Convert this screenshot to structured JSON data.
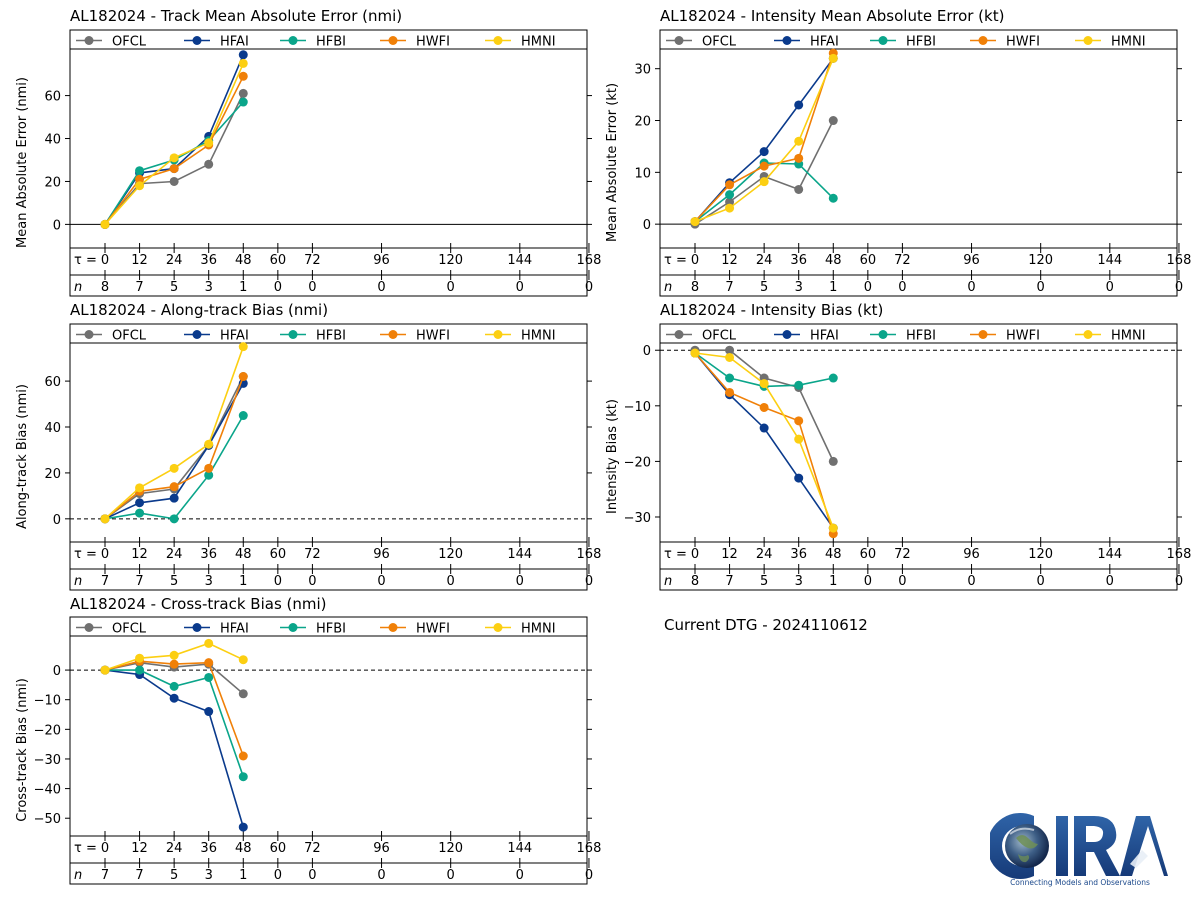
{
  "dtg_text": "Current DTG - 2024110612",
  "logo": {
    "text": "CIRA",
    "tagline": "Connecting Models and Observations"
  },
  "colors": {
    "OFCL": "#707070",
    "HFAI": "#0a3a8c",
    "HFBI": "#0aa58a",
    "HWFI": "#f08008",
    "HMNI": "#fccf12"
  },
  "chart_data": [
    {
      "id": "track_mae",
      "type": "line",
      "title": "AL182024 - Track Mean Absolute Error (nmi)",
      "ylabel": "Mean Absolute Error (nmi)",
      "ylim": [
        -11,
        81.7
      ],
      "yticks": [
        0,
        20,
        40,
        60
      ],
      "dashed_zero": false,
      "tau_label": "τ =",
      "n_label": "n",
      "taus": [
        0,
        12,
        24,
        36,
        48,
        60,
        72,
        96,
        120,
        144,
        168
      ],
      "n": [
        8,
        7,
        5,
        3,
        1,
        0,
        0,
        0,
        0,
        0,
        0
      ],
      "series": [
        {
          "name": "OFCL",
          "x": [
            0,
            12,
            24,
            36,
            48
          ],
          "values": [
            0,
            19,
            20,
            28,
            61
          ]
        },
        {
          "name": "HFAI",
          "x": [
            0,
            12,
            24,
            36,
            48
          ],
          "values": [
            0,
            24,
            26,
            41,
            79
          ]
        },
        {
          "name": "HFBI",
          "x": [
            0,
            12,
            24,
            36,
            48
          ],
          "values": [
            0,
            25,
            30,
            39,
            57
          ]
        },
        {
          "name": "HWFI",
          "x": [
            0,
            12,
            24,
            36,
            48
          ],
          "values": [
            0,
            21,
            26,
            37,
            69
          ]
        },
        {
          "name": "HMNI",
          "x": [
            0,
            12,
            24,
            36,
            48
          ],
          "values": [
            0,
            18,
            31,
            38,
            75
          ]
        }
      ]
    },
    {
      "id": "intensity_mae",
      "type": "line",
      "title": "AL182024 - Intensity Mean Absolute Error (kt)",
      "ylabel": "Mean Absolute Error (kt)",
      "ylim": [
        -4.6,
        33.8
      ],
      "yticks": [
        0,
        10,
        20,
        30
      ],
      "dashed_zero": false,
      "tau_label": "τ =",
      "n_label": "n",
      "taus": [
        0,
        12,
        24,
        36,
        48,
        60,
        72,
        96,
        120,
        144,
        168
      ],
      "n": [
        8,
        7,
        5,
        3,
        1,
        0,
        0,
        0,
        0,
        0,
        0
      ],
      "series": [
        {
          "name": "OFCL",
          "x": [
            0,
            12,
            24,
            36,
            48
          ],
          "values": [
            0,
            4.3,
            9.2,
            6.7,
            20
          ]
        },
        {
          "name": "HFAI",
          "x": [
            0,
            12,
            24,
            36,
            48
          ],
          "values": [
            0.5,
            8,
            14,
            23,
            32
          ]
        },
        {
          "name": "HFBI",
          "x": [
            0,
            12,
            24,
            36,
            48
          ],
          "values": [
            0.5,
            5.7,
            11.8,
            11.6,
            5
          ]
        },
        {
          "name": "HWFI",
          "x": [
            0,
            12,
            24,
            36,
            48
          ],
          "values": [
            0.5,
            7.6,
            11.2,
            12.7,
            33
          ]
        },
        {
          "name": "HMNI",
          "x": [
            0,
            12,
            24,
            36,
            48
          ],
          "values": [
            0.5,
            3.1,
            8.2,
            16,
            32
          ]
        }
      ]
    },
    {
      "id": "along_track_bias",
      "type": "line",
      "title": "AL182024 - Along-track Bias (nmi)",
      "ylabel": "Along-track Bias (nmi)",
      "ylim": [
        -10.1,
        76.6
      ],
      "yticks": [
        0,
        20,
        40,
        60
      ],
      "dashed_zero": true,
      "tau_label": "τ =",
      "n_label": "n",
      "taus": [
        0,
        12,
        24,
        36,
        48,
        60,
        72,
        96,
        120,
        144,
        168
      ],
      "n": [
        7,
        7,
        5,
        3,
        1,
        0,
        0,
        0,
        0,
        0,
        0
      ],
      "series": [
        {
          "name": "OFCL",
          "x": [
            0,
            12,
            24,
            36,
            48
          ],
          "values": [
            0,
            11,
            13,
            32,
            62
          ]
        },
        {
          "name": "HFAI",
          "x": [
            0,
            12,
            24,
            36,
            48
          ],
          "values": [
            0,
            7,
            9,
            32,
            59
          ]
        },
        {
          "name": "HFBI",
          "x": [
            0,
            12,
            24,
            36,
            48
          ],
          "values": [
            0,
            2.5,
            0,
            19,
            45
          ]
        },
        {
          "name": "HWFI",
          "x": [
            0,
            12,
            24,
            36,
            48
          ],
          "values": [
            0,
            12,
            14,
            22,
            62
          ]
        },
        {
          "name": "HMNI",
          "x": [
            0,
            12,
            24,
            36,
            48
          ],
          "values": [
            0,
            13.5,
            22,
            32.5,
            75
          ]
        }
      ]
    },
    {
      "id": "intensity_bias",
      "type": "line",
      "title": "AL182024 - Intensity Bias (kt)",
      "ylabel": "Intensity Bias (kt)",
      "ylim": [
        -34.5,
        1.3
      ],
      "yticks": [
        0,
        -10,
        -20,
        -30
      ],
      "dashed_zero": true,
      "tau_label": "τ =",
      "n_label": "n",
      "taus": [
        0,
        12,
        24,
        36,
        48,
        60,
        72,
        96,
        120,
        144,
        168
      ],
      "n": [
        8,
        7,
        5,
        3,
        1,
        0,
        0,
        0,
        0,
        0,
        0
      ],
      "series": [
        {
          "name": "OFCL",
          "x": [
            0,
            12,
            24,
            36,
            48
          ],
          "values": [
            0,
            0,
            -5,
            -6.7,
            -20
          ]
        },
        {
          "name": "HFAI",
          "x": [
            0,
            12,
            24,
            36,
            48
          ],
          "values": [
            -0.5,
            -8,
            -14,
            -23,
            -32
          ]
        },
        {
          "name": "HFBI",
          "x": [
            0,
            12,
            24,
            36,
            48
          ],
          "values": [
            -0.5,
            -5,
            -6.5,
            -6.3,
            -5
          ]
        },
        {
          "name": "HWFI",
          "x": [
            0,
            12,
            24,
            36,
            48
          ],
          "values": [
            -0.5,
            -7.6,
            -10.3,
            -12.7,
            -33
          ]
        },
        {
          "name": "HMNI",
          "x": [
            0,
            12,
            24,
            36,
            48
          ],
          "values": [
            -0.5,
            -1.3,
            -6,
            -16,
            -32
          ]
        }
      ]
    },
    {
      "id": "cross_track_bias",
      "type": "line",
      "title": "AL182024 - Cross-track Bias (nmi)",
      "ylabel": "Cross-track Bias (nmi)",
      "ylim": [
        -56,
        11.5
      ],
      "yticks": [
        0,
        -10,
        -20,
        -30,
        -40,
        -50
      ],
      "dashed_zero": true,
      "tau_label": "τ =",
      "n_label": "n",
      "taus": [
        0,
        12,
        24,
        36,
        48,
        60,
        72,
        96,
        120,
        144,
        168
      ],
      "n": [
        7,
        7,
        5,
        3,
        1,
        0,
        0,
        0,
        0,
        0,
        0
      ],
      "series": [
        {
          "name": "OFCL",
          "x": [
            0,
            12,
            24,
            36,
            48
          ],
          "values": [
            0,
            2.5,
            1,
            2,
            -8
          ]
        },
        {
          "name": "HFAI",
          "x": [
            0,
            12,
            24,
            36,
            48
          ],
          "values": [
            0,
            -1.5,
            -9.5,
            -14,
            -53
          ]
        },
        {
          "name": "HFBI",
          "x": [
            0,
            12,
            24,
            36,
            48
          ],
          "values": [
            0,
            0,
            -5.5,
            -2.5,
            -36
          ]
        },
        {
          "name": "HWFI",
          "x": [
            0,
            12,
            24,
            36,
            48
          ],
          "values": [
            0,
            3,
            2,
            2.5,
            -29
          ]
        },
        {
          "name": "HMNI",
          "x": [
            0,
            12,
            24,
            36,
            48
          ],
          "values": [
            0,
            4,
            5,
            9,
            3.5
          ]
        }
      ]
    }
  ]
}
